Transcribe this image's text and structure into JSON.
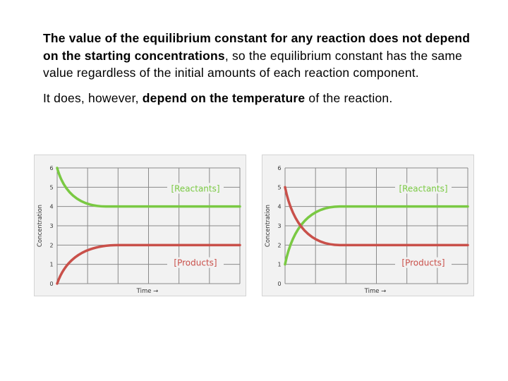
{
  "text": {
    "p1_bold1": "The value of the equilibrium constant for any reaction does not depend on the starting concentrations",
    "p1_rest": ", so the equilibrium constant has the same value regardless of the initial amounts of each reaction component.",
    "p2_lead": "It does, however, ",
    "p2_bold": "depend on the temperature",
    "p2_rest": " of the reaction."
  },
  "colors": {
    "reactants": "#7ac943",
    "products": "#c9504a",
    "grid": "#8a8a8a"
  },
  "chart_data": [
    {
      "type": "line",
      "xlabel": "Time →",
      "ylabel": "Concentration",
      "ylim": [
        0,
        6
      ],
      "xlim": [
        0,
        6
      ],
      "yticks": [
        "0",
        "1",
        "2",
        "3",
        "4",
        "5",
        "6"
      ],
      "grid": true,
      "series": [
        {
          "name": "[Reactants]",
          "color": "reactants",
          "start": 6,
          "end": 4,
          "settle_x": 1.6
        },
        {
          "name": "[Products]",
          "color": "products",
          "start": 0,
          "end": 2,
          "settle_x": 2.0
        }
      ]
    },
    {
      "type": "line",
      "xlabel": "Time →",
      "ylabel": "Concentration",
      "ylim": [
        0,
        6
      ],
      "xlim": [
        0,
        6
      ],
      "yticks": [
        "0",
        "1",
        "2",
        "3",
        "4",
        "5",
        "6"
      ],
      "grid": true,
      "series": [
        {
          "name": "[Reactants]",
          "color": "reactants",
          "start": 1,
          "end": 4,
          "settle_x": 1.8
        },
        {
          "name": "[Products]",
          "color": "products",
          "start": 5,
          "end": 2,
          "settle_x": 1.8
        }
      ]
    }
  ]
}
